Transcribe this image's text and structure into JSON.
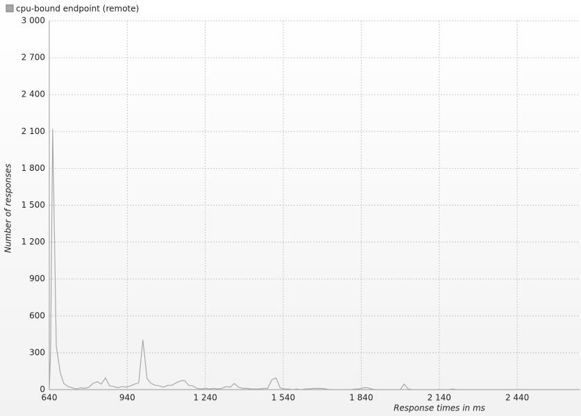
{
  "chart_data": {
    "type": "line",
    "x_label": "Response times in ms",
    "y_label": "Number of responses",
    "x": [
      640,
      645,
      653,
      667,
      683,
      696,
      712,
      728,
      744,
      760,
      776,
      792,
      808,
      824,
      840,
      856,
      872,
      888,
      904,
      920,
      936,
      952,
      968,
      984,
      1000,
      1016,
      1032,
      1048,
      1064,
      1080,
      1096,
      1112,
      1128,
      1144,
      1160,
      1176,
      1192,
      1208,
      1224,
      1240,
      1256,
      1272,
      1288,
      1304,
      1320,
      1336,
      1352,
      1368,
      1384,
      1400,
      1416,
      1432,
      1448,
      1464,
      1480,
      1496,
      1512,
      1528,
      1544,
      1560,
      1576,
      1592,
      1608,
      1624,
      1640,
      1656,
      1672,
      1688,
      1704,
      1720,
      1800,
      1816,
      1832,
      1848,
      1864,
      1880,
      1896,
      1990,
      2005,
      2021,
      2037,
      2176,
      2192,
      2208,
      2680
    ],
    "series": [
      {
        "name": "cpu-bound endpoint (remote)",
        "color": "#a8a8a8",
        "values": [
          0,
          300,
          2120,
          350,
          130,
          50,
          25,
          15,
          5,
          15,
          10,
          20,
          50,
          65,
          45,
          95,
          30,
          25,
          15,
          25,
          20,
          30,
          45,
          55,
          405,
          90,
          50,
          35,
          30,
          20,
          35,
          35,
          55,
          70,
          75,
          35,
          30,
          10,
          5,
          10,
          5,
          10,
          5,
          10,
          25,
          20,
          50,
          20,
          10,
          10,
          5,
          5,
          5,
          10,
          10,
          80,
          95,
          15,
          5,
          5,
          0,
          5,
          0,
          5,
          5,
          10,
          10,
          10,
          5,
          0,
          0,
          5,
          5,
          15,
          15,
          5,
          0,
          0,
          45,
          5,
          0,
          0,
          5,
          0,
          0
        ]
      }
    ],
    "xlim": [
      640,
      2680
    ],
    "ylim": [
      0,
      3000
    ],
    "xticks": [
      640,
      940,
      {
        "value": 1240,
        "label": "1 240"
      },
      {
        "value": 1540,
        "label": "1 540"
      },
      {
        "value": 1840,
        "label": "1 840"
      },
      {
        "value": 2140,
        "label": "2 140"
      },
      {
        "value": 2440,
        "label": "2 440"
      }
    ],
    "yticks": [
      0,
      300,
      600,
      900,
      {
        "value": 1200,
        "label": "1 200"
      },
      {
        "value": 1500,
        "label": "1 500"
      },
      {
        "value": 1800,
        "label": "1 800"
      },
      {
        "value": 2100,
        "label": "2 100"
      },
      {
        "value": 2400,
        "label": "2 400"
      },
      {
        "value": 2700,
        "label": "2 700"
      },
      {
        "value": 3000,
        "label": "3 000"
      }
    ],
    "grid": true
  }
}
